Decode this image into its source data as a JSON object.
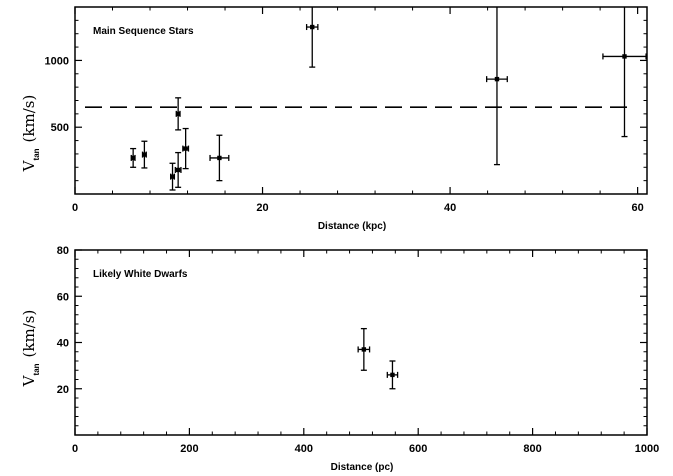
{
  "chart_data": [
    {
      "type": "scatter",
      "panel_label": "Main Sequence Stars",
      "xlabel": "Distance (kpc)",
      "ylabel": {
        "main": "V",
        "sub": "tan",
        "unit": "(km/s)"
      },
      "xlim": [
        0,
        61
      ],
      "ylim": [
        0,
        1400
      ],
      "xticks": [
        0,
        20,
        40,
        60
      ],
      "yticks": [
        500,
        1000
      ],
      "reference_line": {
        "y": 650,
        "style": "dashed"
      },
      "points": [
        {
          "x": 6.2,
          "y": 270,
          "xerr": 0.2,
          "yerr_lo": 70,
          "yerr_hi": 70
        },
        {
          "x": 7.4,
          "y": 295,
          "xerr": 0.2,
          "yerr_lo": 100,
          "yerr_hi": 100
        },
        {
          "x": 10.4,
          "y": 130,
          "xerr": 0.2,
          "yerr_lo": 100,
          "yerr_hi": 100
        },
        {
          "x": 11.0,
          "y": 600,
          "xerr": 0.2,
          "yerr_lo": 120,
          "yerr_hi": 120
        },
        {
          "x": 11.0,
          "y": 180,
          "xerr": 0.3,
          "yerr_lo": 130,
          "yerr_hi": 130
        },
        {
          "x": 11.8,
          "y": 340,
          "xerr": 0.3,
          "yerr_lo": 150,
          "yerr_hi": 150
        },
        {
          "x": 15.4,
          "y": 270,
          "xerr": 1.0,
          "yerr_lo": 170,
          "yerr_hi": 170
        },
        {
          "x": 25.3,
          "y": 1250,
          "xerr": 0.6,
          "yerr_lo": 300,
          "yerr_hi": 300
        },
        {
          "x": 45.0,
          "y": 860,
          "xerr": 1.1,
          "yerr_lo": 640,
          "yerr_hi": 640
        },
        {
          "x": 58.6,
          "y": 1030,
          "xerr": 2.3,
          "yerr_lo": 600,
          "yerr_hi": 600
        }
      ]
    },
    {
      "type": "scatter",
      "panel_label": "Likely White Dwarfs",
      "xlabel": "Distance (pc)",
      "ylabel": {
        "main": "V",
        "sub": "tan",
        "unit": "(km/s)"
      },
      "xlim": [
        0,
        1000
      ],
      "ylim": [
        0,
        80
      ],
      "xticks": [
        0,
        200,
        400,
        600,
        800,
        1000
      ],
      "yticks": [
        20,
        40,
        60,
        80
      ],
      "points": [
        {
          "x": 505,
          "y": 37,
          "xerr": 10,
          "yerr_lo": 9,
          "yerr_hi": 9
        },
        {
          "x": 555,
          "y": 26,
          "xerr": 9,
          "yerr_lo": 6,
          "yerr_hi": 6
        }
      ]
    }
  ]
}
